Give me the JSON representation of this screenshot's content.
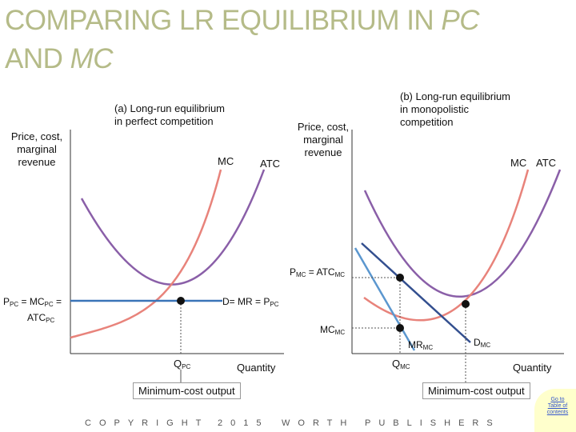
{
  "title": {
    "line1": "COMPARING LR EQUILIBRIUM IN ",
    "pc": "PC",
    "line2": "AND ",
    "mc": "MC"
  },
  "panel_a": {
    "title_line1": "(a) Long-run equilibrium",
    "title_line2": "in perfect competition",
    "ylabel_line1": "Price, cost,",
    "ylabel_line2": "marginal",
    "ylabel_line3": "revenue",
    "mc_label": "MC",
    "atc_label": "ATC",
    "price_label": "P",
    "price_sub": "PC",
    "price_eq": " = MC",
    "price_sub2": "PC",
    "price_eq2": " =",
    "atc_eq": "ATC",
    "atc_sub": "PC",
    "demand_label": "D= MR = P",
    "demand_sub": "PC",
    "q_label": "Q",
    "q_sub": "PC",
    "xlabel": "Quantity",
    "note": "Minimum-cost output"
  },
  "panel_b": {
    "title_line1": "(b) Long-run equilibrium",
    "title_line2": "in monopolistic",
    "title_line3": "competition",
    "ylabel_line1": "Price, cost,",
    "ylabel_line2": "marginal",
    "ylabel_line3": "revenue",
    "mc_label": "MC",
    "atc_label": "ATC",
    "price_label": "P",
    "price_sub": "MC",
    "price_eq": " = ATC",
    "price_sub2": "MC",
    "mc_point_label": "MC",
    "mc_point_sub": "MC",
    "mr_label": "MR",
    "mr_sub": "MC",
    "d_label": "D",
    "d_sub": "MC",
    "q_label": "Q",
    "q_sub": "MC",
    "xlabel": "Quantity",
    "note": "Minimum-cost output"
  },
  "footer": {
    "copyright": "COPYRIGHT",
    "year": "2015",
    "worth": "WORTH",
    "publishers": "PUBLISHERS"
  },
  "goto": {
    "label": "Go to Table of contents"
  },
  "colors": {
    "title": "#b5bb88",
    "mc_curve": "#e8837b",
    "atc_curve": "#8a5fa8",
    "demand": "#3a74b8",
    "mr": "#5b97cf",
    "dmc": "#334f8f"
  }
}
